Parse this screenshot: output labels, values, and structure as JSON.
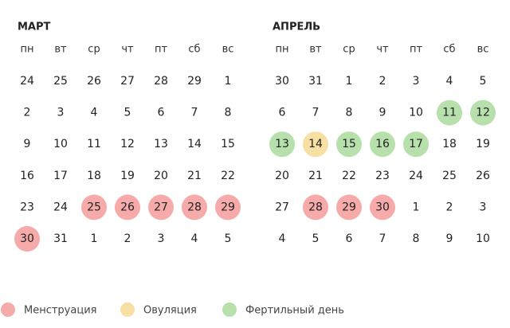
{
  "months": [
    {
      "title": "МАРТ",
      "weekdays": [
        "пн",
        "вт",
        "ср",
        "чт",
        "пт",
        "сб",
        "вс"
      ],
      "days": [
        24,
        25,
        26,
        27,
        28,
        29,
        1,
        2,
        3,
        4,
        5,
        6,
        7,
        8,
        9,
        10,
        11,
        12,
        13,
        14,
        15,
        16,
        17,
        18,
        19,
        20,
        21,
        22,
        23,
        24,
        25,
        26,
        27,
        28,
        29,
        30,
        31,
        1,
        2,
        3,
        4,
        5
      ],
      "kinds": [
        null,
        null,
        null,
        null,
        null,
        null,
        null,
        null,
        null,
        null,
        null,
        null,
        null,
        null,
        null,
        null,
        null,
        null,
        null,
        null,
        null,
        null,
        null,
        null,
        null,
        null,
        null,
        null,
        null,
        null,
        0,
        0,
        0,
        0,
        0,
        0,
        null,
        null,
        null,
        null,
        null,
        null
      ]
    },
    {
      "title": "АПРЕЛЬ",
      "weekdays": [
        "пн",
        "вт",
        "ср",
        "чт",
        "пт",
        "сб",
        "вс"
      ],
      "days": [
        30,
        31,
        1,
        2,
        3,
        4,
        5,
        6,
        7,
        8,
        9,
        10,
        11,
        12,
        13,
        14,
        15,
        16,
        17,
        18,
        19,
        20,
        21,
        22,
        23,
        24,
        25,
        26,
        27,
        28,
        29,
        30,
        1,
        2,
        3,
        4,
        5,
        6,
        7,
        8,
        9,
        10
      ],
      "kinds": [
        null,
        null,
        null,
        null,
        null,
        null,
        null,
        null,
        null,
        null,
        null,
        null,
        2,
        2,
        2,
        1,
        2,
        2,
        2,
        null,
        null,
        null,
        null,
        null,
        null,
        null,
        null,
        null,
        null,
        0,
        0,
        0,
        null,
        null,
        null,
        null,
        null,
        null,
        null,
        null,
        null,
        null
      ]
    }
  ],
  "legend": [
    {
      "label": "Менструация",
      "color": "#f6aaaa"
    },
    {
      "label": "Овуляция",
      "color": "#f8dfa4"
    },
    {
      "label": "Фертильный день",
      "color": "#b7e0ad"
    }
  ]
}
